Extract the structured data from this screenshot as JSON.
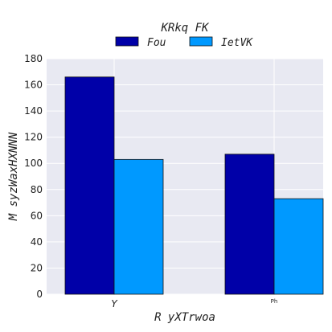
{
  "chart_data": {
    "type": "bar",
    "categories": [
      "Y",
      "Ph"
    ],
    "series": [
      {
        "name": "Fou",
        "values": [
          166,
          107
        ],
        "color": "#0000a8"
      },
      {
        "name": "IetVK",
        "values": [
          103,
          73
        ],
        "color": "#0099ff"
      }
    ],
    "ylim": [
      0,
      180
    ],
    "yticks": [
      0,
      20,
      40,
      60,
      80,
      100,
      120,
      140,
      160,
      180
    ],
    "xlabel": "R  yXTrwoa",
    "ylabel": "M syzWaxHXNNN",
    "legend": {
      "title": "KRkq FK",
      "placement": "top-center"
    },
    "grid": true,
    "background": "#e8e9f2"
  }
}
